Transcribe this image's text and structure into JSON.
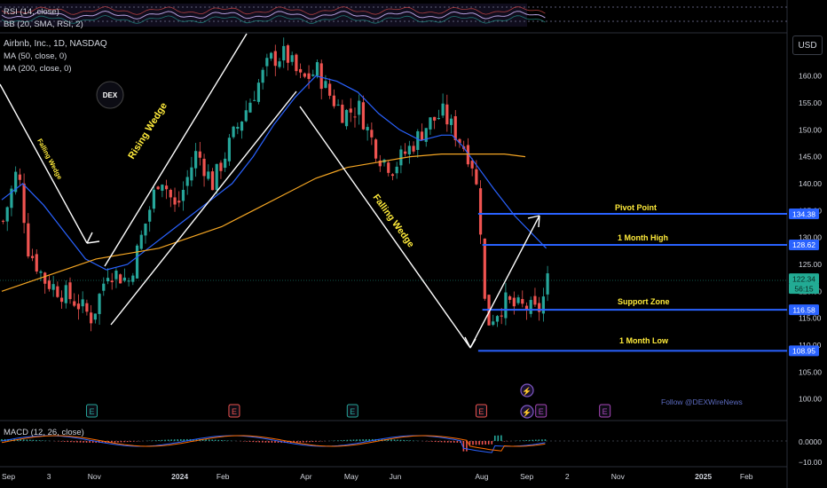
{
  "header": {
    "symbol_line": "Airbnb, Inc., 1D, NASDAQ",
    "ma50": "MA (50, close, 0)",
    "ma200": "MA (200, close, 0)",
    "rsi_label": "RSI (14, close)",
    "bb_label": "BB (20, SMA, RSI, 2)",
    "macd_label": "MACD (12, 26, close)",
    "currency": "USD"
  },
  "watermark": {
    "logo_text": "DEX",
    "follow_text": "Follow @DEXWireNews"
  },
  "annotations": {
    "pivot_point": "Pivot Point",
    "month_high": "1 Month High",
    "support_zone": "Support Zone",
    "month_low": "1 Month Low",
    "falling_wedge_left": "Falling Wedge",
    "rising_wedge": "Rising Wedge",
    "falling_wedge_right": "Falling Wedge"
  },
  "colors": {
    "up": "#26a69a",
    "down": "#ef5350",
    "ma50": "#2962ff",
    "ma200": "#f5a623",
    "level": "#2962ff",
    "annotation": "#ffeb3b",
    "current_price": "#22ab94"
  },
  "chart_data": {
    "type": "candlestick",
    "y_axis": {
      "ylim": [
        96,
        168
      ],
      "ticks": [
        100,
        105,
        110,
        115,
        120,
        125,
        130,
        135,
        140,
        145,
        150,
        155,
        160
      ]
    },
    "x_axis": {
      "labels": [
        {
          "label": "Sep",
          "i": 0
        },
        {
          "label": "3",
          "i": 43
        },
        {
          "label": "Nov",
          "i": 82
        },
        {
          "label": "2024",
          "i": 162
        },
        {
          "label": "Feb",
          "i": 205
        },
        {
          "label": "Apr",
          "i": 285
        },
        {
          "label": "May",
          "i": 327
        },
        {
          "label": "Jun",
          "i": 370
        },
        {
          "label": "Aug",
          "i": 452
        },
        {
          "label": "Sep",
          "i": 495
        },
        {
          "label": "2",
          "i": 538
        },
        {
          "label": "Nov",
          "i": 582
        },
        {
          "label": "2025",
          "i": 662
        },
        {
          "label": "Feb",
          "i": 705
        }
      ]
    },
    "price_badges": [
      {
        "value": "134.38",
        "role": "pivot"
      },
      {
        "value": "128.62",
        "role": "high"
      },
      {
        "value": "122.34",
        "role": "current"
      },
      {
        "value": "56:15",
        "role": "countdown"
      },
      {
        "value": "116.58",
        "role": "support"
      },
      {
        "value": "108.95",
        "role": "low"
      }
    ],
    "levels": [
      {
        "name": "Pivot Point",
        "value": 134.38,
        "start_i": 455
      },
      {
        "name": "1 Month High",
        "value": 128.62,
        "start_i": 459
      },
      {
        "name": "Support Zone",
        "value": 116.58,
        "start_i": 459
      },
      {
        "name": "1 Month Low",
        "value": 108.95,
        "start_i": 455
      }
    ],
    "current_price": 122.34,
    "anchors": [
      [
        0,
        133
      ],
      [
        14,
        143
      ],
      [
        24,
        128
      ],
      [
        40,
        122
      ],
      [
        55,
        120
      ],
      [
        70,
        118
      ],
      [
        85,
        115
      ],
      [
        100,
        124
      ],
      [
        120,
        122
      ],
      [
        150,
        142
      ],
      [
        165,
        135
      ],
      [
        185,
        146
      ],
      [
        200,
        140
      ],
      [
        220,
        149
      ],
      [
        240,
        157
      ],
      [
        255,
        163
      ],
      [
        270,
        164
      ],
      [
        285,
        159
      ],
      [
        300,
        161
      ],
      [
        310,
        157
      ],
      [
        325,
        153
      ],
      [
        340,
        154
      ],
      [
        350,
        149
      ],
      [
        360,
        145
      ],
      [
        372,
        143
      ],
      [
        390,
        147
      ],
      [
        405,
        151
      ],
      [
        420,
        153
      ],
      [
        430,
        150
      ],
      [
        443,
        146
      ],
      [
        450,
        143
      ],
      [
        456,
        132
      ],
      [
        458,
        122
      ],
      [
        462,
        114
      ],
      [
        470,
        116
      ],
      [
        480,
        118
      ],
      [
        490,
        117
      ],
      [
        500,
        117
      ],
      [
        510,
        116
      ],
      [
        515,
        118
      ],
      [
        520,
        122
      ]
    ],
    "ma50_points": [
      [
        0,
        137
      ],
      [
        20,
        140
      ],
      [
        40,
        136
      ],
      [
        60,
        131
      ],
      [
        80,
        126
      ],
      [
        100,
        124
      ],
      [
        120,
        125
      ],
      [
        140,
        128
      ],
      [
        160,
        131
      ],
      [
        180,
        134
      ],
      [
        200,
        137
      ],
      [
        220,
        140
      ],
      [
        240,
        145
      ],
      [
        260,
        151
      ],
      [
        280,
        156
      ],
      [
        300,
        160
      ],
      [
        320,
        159
      ],
      [
        340,
        157
      ],
      [
        360,
        153
      ],
      [
        380,
        150
      ],
      [
        400,
        148
      ],
      [
        420,
        149
      ],
      [
        430,
        149
      ],
      [
        440,
        147
      ],
      [
        455,
        143
      ],
      [
        470,
        139
      ],
      [
        490,
        134
      ],
      [
        520,
        128
      ]
    ],
    "ma200_points": [
      [
        0,
        120
      ],
      [
        30,
        122
      ],
      [
        60,
        124
      ],
      [
        90,
        126
      ],
      [
        120,
        127
      ],
      [
        150,
        128
      ],
      [
        180,
        130
      ],
      [
        210,
        132
      ],
      [
        240,
        135
      ],
      [
        270,
        138
      ],
      [
        300,
        141
      ],
      [
        330,
        143
      ],
      [
        360,
        144
      ],
      [
        390,
        145
      ],
      [
        420,
        145.5
      ],
      [
        450,
        145.5
      ],
      [
        480,
        145.5
      ],
      [
        500,
        145
      ]
    ],
    "event_icons": [
      {
        "i": 86,
        "letter": "E",
        "kind": "earnings"
      },
      {
        "i": 222,
        "letter": "E",
        "kind": "earnings-red"
      },
      {
        "i": 335,
        "letter": "E",
        "kind": "earnings"
      },
      {
        "i": 458,
        "letter": "E",
        "kind": "earnings-red"
      },
      {
        "i": 515,
        "letter": "E",
        "kind": "earnings-purple"
      },
      {
        "i": 576,
        "letter": "E",
        "kind": "earnings-purple"
      }
    ],
    "subpanes": {
      "rsi": {
        "ticks": [],
        "note": "RSI pane at top"
      },
      "macd": {
        "ticks": [
          "0.0000",
          "−10.00"
        ]
      }
    }
  }
}
